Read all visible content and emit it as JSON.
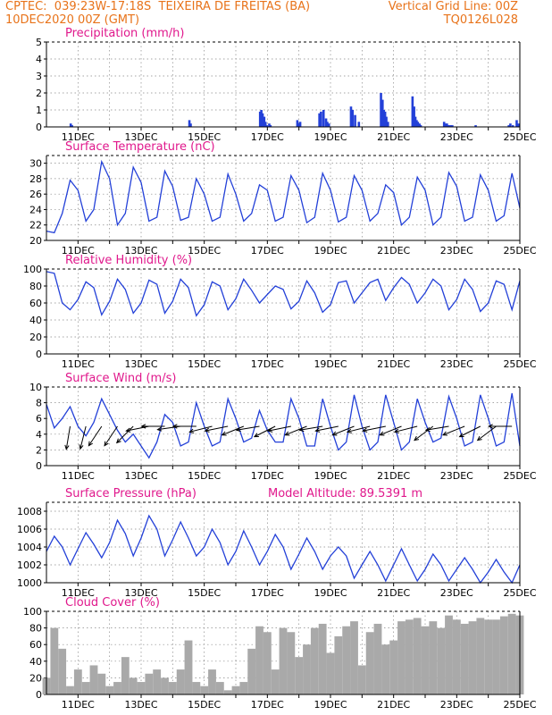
{
  "header": {
    "line1": "CPTEC:  039:23W-17:18S  TEIXEIRA DE FREITAS (BA)",
    "line2": "10DEC2020 00Z (GMT)",
    "right1": "Vertical Grid Line: 00Z",
    "right2": "TQ0126L028"
  },
  "colors": {
    "header": "#e8731a",
    "title": "#e0188c",
    "line": "#2340d8",
    "bar": "#2340d8",
    "cloud": "#a9a9a9"
  },
  "x_labels": [
    "11DEC",
    "13DEC",
    "15DEC",
    "17DEC",
    "19DEC",
    "21DEC",
    "23DEC",
    "25DEC"
  ],
  "chart_data": [
    {
      "type": "bar",
      "title": "Precipitation (mm/h)",
      "x": [
        "10.77",
        "10.81",
        "14.53",
        "14.57",
        "16.77",
        "16.81",
        "16.85",
        "16.90",
        "16.94",
        "16.98",
        "17.06",
        "17.10",
        "17.95",
        "18.00",
        "18.04",
        "18.65",
        "18.70",
        "18.78",
        "18.86",
        "18.90",
        "18.95",
        "19.65",
        "19.70",
        "19.78",
        "19.90",
        "20.60",
        "20.65",
        "20.69",
        "20.73",
        "20.77",
        "20.82",
        "21.60",
        "21.65",
        "21.69",
        "21.73",
        "21.77",
        "21.82",
        "21.86",
        "22.60",
        "22.65",
        "22.69",
        "22.73",
        "22.77",
        "22.82",
        "22.86",
        "23.60",
        "24.65",
        "24.70",
        "24.78",
        "24.90",
        "24.95"
      ],
      "values": [
        0.2,
        0.1,
        0.4,
        0.2,
        0.9,
        1.0,
        0.8,
        0.6,
        0.3,
        0.1,
        0.2,
        0.1,
        0.4,
        0.2,
        0.3,
        0.8,
        0.9,
        1.0,
        0.5,
        0.3,
        0.2,
        1.2,
        1.0,
        0.7,
        0.3,
        2.0,
        1.6,
        1.0,
        0.9,
        0.6,
        0.3,
        1.8,
        1.2,
        0.6,
        0.4,
        0.3,
        0.2,
        0.1,
        0.3,
        0.2,
        0.2,
        0.1,
        0.1,
        0.1,
        0.1,
        0.1,
        0.1,
        0.2,
        0.1,
        0.4,
        0.2
      ],
      "ylim": [
        0,
        5
      ],
      "yticks": [
        0,
        1,
        2,
        3,
        4,
        5
      ]
    },
    {
      "type": "line",
      "title": "Surface Temperature (nC)",
      "ylim": [
        20,
        31
      ],
      "yticks": [
        20,
        22,
        24,
        26,
        28,
        30
      ],
      "x": [
        10.0,
        10.25,
        10.5,
        10.75,
        11.0,
        11.25,
        11.5,
        11.75,
        12.0,
        12.25,
        12.5,
        12.75,
        13.0,
        13.25,
        13.5,
        13.75,
        14.0,
        14.25,
        14.5,
        14.75,
        15.0,
        15.25,
        15.5,
        15.75,
        16.0,
        16.25,
        16.5,
        16.75,
        17.0,
        17.25,
        17.5,
        17.75,
        18.0,
        18.25,
        18.5,
        18.75,
        19.0,
        19.25,
        19.5,
        19.75,
        20.0,
        20.25,
        20.5,
        20.75,
        21.0,
        21.25,
        21.5,
        21.75,
        22.0,
        22.25,
        22.5,
        22.75,
        23.0,
        23.25,
        23.5,
        23.75,
        24.0,
        24.25,
        24.5,
        24.75,
        25.0
      ],
      "values": [
        21.2,
        21.0,
        23.5,
        27.8,
        26.5,
        22.5,
        24.0,
        30.2,
        28.0,
        22.0,
        23.5,
        29.5,
        27.5,
        22.5,
        23.0,
        29.0,
        27.0,
        22.6,
        23.0,
        28.0,
        26.0,
        22.5,
        23.0,
        28.6,
        26.0,
        22.5,
        23.5,
        27.2,
        26.5,
        22.5,
        23.0,
        28.4,
        26.5,
        22.3,
        23.0,
        28.7,
        26.5,
        22.4,
        23.0,
        28.4,
        26.5,
        22.5,
        23.5,
        27.2,
        26.2,
        22.0,
        23.0,
        28.2,
        26.5,
        22.0,
        23.0,
        28.8,
        27.0,
        22.5,
        23.0,
        28.5,
        26.5,
        22.5,
        23.2,
        28.7,
        24.2
      ]
    },
    {
      "type": "line",
      "title": "Relative Humidity (%)",
      "ylim": [
        0,
        100
      ],
      "yticks": [
        0,
        20,
        40,
        60,
        80,
        100
      ],
      "x": [
        10.0,
        10.25,
        10.5,
        10.75,
        11.0,
        11.25,
        11.5,
        11.75,
        12.0,
        12.25,
        12.5,
        12.75,
        13.0,
        13.25,
        13.5,
        13.75,
        14.0,
        14.25,
        14.5,
        14.75,
        15.0,
        15.25,
        15.5,
        15.75,
        16.0,
        16.25,
        16.5,
        16.75,
        17.0,
        17.25,
        17.5,
        17.75,
        18.0,
        18.25,
        18.5,
        18.75,
        19.0,
        19.25,
        19.5,
        19.75,
        20.0,
        20.25,
        20.5,
        20.75,
        21.0,
        21.25,
        21.5,
        21.75,
        22.0,
        22.25,
        22.5,
        22.75,
        23.0,
        23.25,
        23.5,
        23.75,
        24.0,
        24.25,
        24.5,
        24.75,
        25.0
      ],
      "values": [
        97,
        95,
        60,
        52,
        64,
        85,
        78,
        46,
        62,
        88,
        76,
        48,
        60,
        87,
        82,
        48,
        62,
        88,
        78,
        45,
        58,
        85,
        80,
        52,
        65,
        88,
        75,
        60,
        70,
        80,
        76,
        53,
        62,
        86,
        72,
        49,
        58,
        84,
        86,
        60,
        72,
        84,
        88,
        63,
        78,
        90,
        82,
        60,
        72,
        88,
        80,
        52,
        64,
        88,
        76,
        50,
        60,
        86,
        82,
        52,
        86
      ]
    },
    {
      "type": "line",
      "title": "Surface Wind (m/s)",
      "ylim": [
        0,
        10
      ],
      "yticks": [
        0,
        2,
        4,
        6,
        8,
        10
      ],
      "x": [
        10.0,
        10.25,
        10.5,
        10.75,
        11.0,
        11.25,
        11.5,
        11.75,
        12.0,
        12.25,
        12.5,
        12.75,
        13.0,
        13.25,
        13.5,
        13.75,
        14.0,
        14.25,
        14.5,
        14.75,
        15.0,
        15.25,
        15.5,
        15.75,
        16.0,
        16.25,
        16.5,
        16.75,
        17.0,
        17.25,
        17.5,
        17.75,
        18.0,
        18.25,
        18.5,
        18.75,
        19.0,
        19.25,
        19.5,
        19.75,
        20.0,
        20.25,
        20.5,
        20.75,
        21.0,
        21.25,
        21.5,
        21.75,
        22.0,
        22.25,
        22.5,
        22.75,
        23.0,
        23.25,
        23.5,
        23.75,
        24.0,
        24.25,
        24.5,
        24.75,
        25.0
      ],
      "values": [
        7.8,
        4.8,
        6.0,
        7.5,
        5.0,
        3.8,
        5.5,
        8.5,
        6.5,
        4.5,
        3.0,
        4.0,
        2.5,
        1.0,
        3.0,
        6.5,
        5.5,
        2.5,
        3.0,
        8.0,
        5.0,
        2.5,
        3.0,
        8.5,
        6.0,
        3.0,
        3.5,
        7.0,
        4.5,
        3.0,
        3.0,
        8.5,
        6.0,
        2.5,
        2.5,
        8.5,
        5.0,
        2.0,
        3.0,
        9.0,
        5.0,
        2.0,
        3.0,
        9.0,
        5.5,
        2.0,
        3.0,
        8.5,
        5.5,
        3.0,
        3.5,
        8.8,
        6.0,
        2.5,
        3.0,
        9.0,
        6.0,
        2.5,
        3.0,
        9.2,
        2.5
      ]
    },
    {
      "type": "line",
      "title": "Surface Pressure (hPa)",
      "annotation": "Model Altitude: 89.5391 m",
      "ylim": [
        1000,
        1009
      ],
      "yticks": [
        1000,
        1002,
        1004,
        1006,
        1008
      ],
      "x": [
        10.0,
        10.25,
        10.5,
        10.75,
        11.0,
        11.25,
        11.5,
        11.75,
        12.0,
        12.25,
        12.5,
        12.75,
        13.0,
        13.25,
        13.5,
        13.75,
        14.0,
        14.25,
        14.5,
        14.75,
        15.0,
        15.25,
        15.5,
        15.75,
        16.0,
        16.25,
        16.5,
        16.75,
        17.0,
        17.25,
        17.5,
        17.75,
        18.0,
        18.25,
        18.5,
        18.75,
        19.0,
        19.25,
        19.5,
        19.75,
        20.0,
        20.25,
        20.5,
        20.75,
        21.0,
        21.25,
        21.5,
        21.75,
        22.0,
        22.25,
        22.5,
        22.75,
        23.0,
        23.25,
        23.5,
        23.75,
        24.0,
        24.25,
        24.5,
        24.75,
        25.0
      ],
      "values": [
        1003.5,
        1005.2,
        1004.0,
        1002.0,
        1003.8,
        1005.6,
        1004.3,
        1002.8,
        1004.5,
        1007.0,
        1005.5,
        1003.0,
        1005.0,
        1007.5,
        1006.0,
        1003.0,
        1004.8,
        1006.8,
        1005.0,
        1003.0,
        1004.0,
        1006.0,
        1004.5,
        1002.0,
        1003.5,
        1005.8,
        1004.0,
        1002.0,
        1003.5,
        1005.4,
        1004.0,
        1001.5,
        1003.2,
        1005.0,
        1003.5,
        1001.5,
        1003.0,
        1004.0,
        1003.0,
        1000.5,
        1002.0,
        1003.5,
        1002.0,
        1000.2,
        1002.0,
        1003.8,
        1002.0,
        1000.2,
        1001.5,
        1003.2,
        1002.0,
        1000.2,
        1001.5,
        1002.8,
        1001.5,
        1000.0,
        1001.2,
        1002.6,
        1001.2,
        1000.0,
        1002.0
      ]
    },
    {
      "type": "area",
      "title": "Cloud Cover (%)",
      "ylim": [
        0,
        100
      ],
      "yticks": [
        0,
        20,
        40,
        60,
        80,
        100
      ],
      "x": [
        10.0,
        10.25,
        10.5,
        10.75,
        11.0,
        11.25,
        11.5,
        11.75,
        12.0,
        12.25,
        12.5,
        12.75,
        13.0,
        13.25,
        13.5,
        13.75,
        14.0,
        14.25,
        14.5,
        14.75,
        15.0,
        15.25,
        15.5,
        15.75,
        16.0,
        16.25,
        16.5,
        16.75,
        17.0,
        17.25,
        17.5,
        17.75,
        18.0,
        18.25,
        18.5,
        18.75,
        19.0,
        19.25,
        19.5,
        19.75,
        20.0,
        20.25,
        20.5,
        20.75,
        21.0,
        21.25,
        21.5,
        21.75,
        22.0,
        22.25,
        22.5,
        22.75,
        23.0,
        23.25,
        23.5,
        23.75,
        24.0,
        24.25,
        24.5,
        24.75,
        25.0
      ],
      "values": [
        20,
        80,
        55,
        10,
        30,
        15,
        35,
        25,
        10,
        15,
        45,
        20,
        15,
        25,
        30,
        20,
        15,
        30,
        65,
        15,
        10,
        30,
        15,
        5,
        10,
        15,
        55,
        82,
        75,
        30,
        80,
        75,
        45,
        60,
        80,
        85,
        50,
        70,
        82,
        88,
        35,
        75,
        85,
        60,
        65,
        88,
        90,
        92,
        82,
        88,
        80,
        95,
        90,
        85,
        88,
        92,
        90,
        90,
        94,
        97,
        95
      ]
    }
  ],
  "wind_vectors": {
    "x": [
      10.75,
      11.25,
      11.75,
      12.25,
      12.75,
      13.25,
      13.75,
      14.25,
      14.75,
      15.25,
      15.75,
      16.25,
      16.75,
      17.25,
      17.75,
      18.25,
      18.75,
      19.25,
      19.75,
      20.25,
      20.75,
      21.25,
      21.75,
      22.25,
      22.75,
      23.25,
      23.75,
      24.25,
      24.75
    ],
    "u": [
      -1,
      -1,
      -2,
      -2,
      -4,
      -5,
      -6,
      -7,
      -6,
      -4,
      -5,
      -5,
      -6,
      -4,
      -5,
      -5,
      -6,
      -5,
      -5,
      -4,
      -5,
      -5,
      -4,
      -4,
      -6,
      -5,
      -4,
      -4,
      -6
    ],
    "v": [
      -6,
      -4,
      -3,
      -3,
      -4,
      -1,
      0,
      -1,
      0,
      -1,
      -1,
      -2,
      -1,
      -2,
      -1,
      -2,
      -1,
      -1,
      -2,
      -1,
      -1,
      -2,
      -1,
      -3,
      -1,
      -2,
      -2,
      -3,
      0
    ]
  }
}
